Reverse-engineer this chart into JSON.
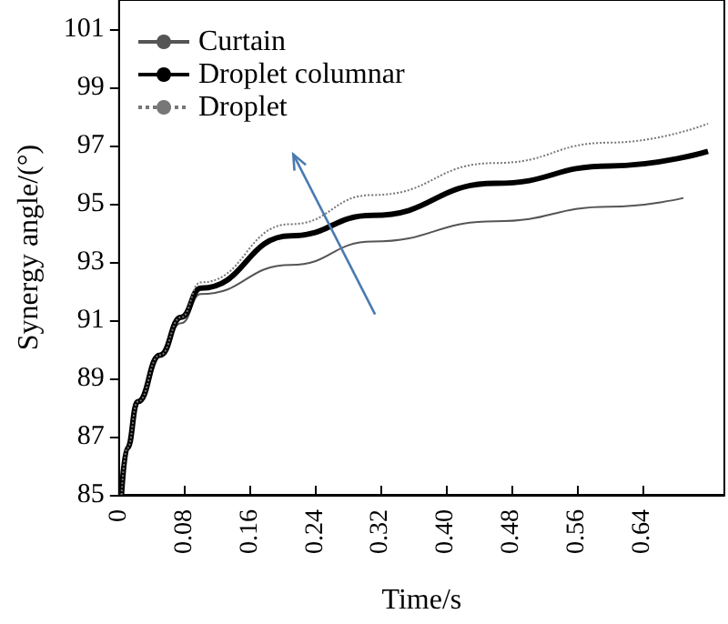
{
  "chart_data": {
    "type": "line",
    "xlabel": "Time/s",
    "ylabel": "Synergy angle/(°)",
    "xlim": [
      0,
      0.74
    ],
    "xticks": [
      0,
      0.08,
      0.16,
      0.24,
      0.32,
      {
        "value": 0.4,
        "label": "0.40"
      },
      0.48,
      0.56,
      0.64
    ],
    "ylim": [
      85,
      102
    ],
    "yticks": [
      85,
      87,
      89,
      91,
      93,
      95,
      97,
      99,
      101
    ],
    "grid": false,
    "legend": "top left",
    "marker": "none",
    "series": [
      {
        "name": "Curtain",
        "color": "#555555",
        "line_style": "solid",
        "x": [
          0.003,
          0.01,
          0.023,
          0.05,
          0.076,
          0.1,
          0.21,
          0.31,
          0.46,
          0.6,
          0.69
        ],
        "values": [
          85,
          86.6,
          88.2,
          89.8,
          90.9,
          91.9,
          92.9,
          93.7,
          94.4,
          94.9,
          95.2
        ]
      },
      {
        "name": "Droplet columnar",
        "color": "#000000",
        "line_style": "solid",
        "x": [
          0.003,
          0.01,
          0.023,
          0.05,
          0.076,
          0.1,
          0.21,
          0.31,
          0.46,
          0.6,
          0.72
        ],
        "values": [
          85,
          86.6,
          88.2,
          89.8,
          91.1,
          92.1,
          93.9,
          94.6,
          95.7,
          96.3,
          96.8
        ]
      },
      {
        "name": "Droplet",
        "color": "#777777",
        "line_style": "dotted",
        "x": [
          0.003,
          0.01,
          0.023,
          0.05,
          0.076,
          0.1,
          0.21,
          0.31,
          0.46,
          0.6,
          0.72
        ],
        "values": [
          85,
          86.6,
          88.2,
          89.8,
          91.1,
          92.3,
          94.3,
          95.3,
          96.4,
          97.1,
          97.75
        ]
      }
    ]
  }
}
